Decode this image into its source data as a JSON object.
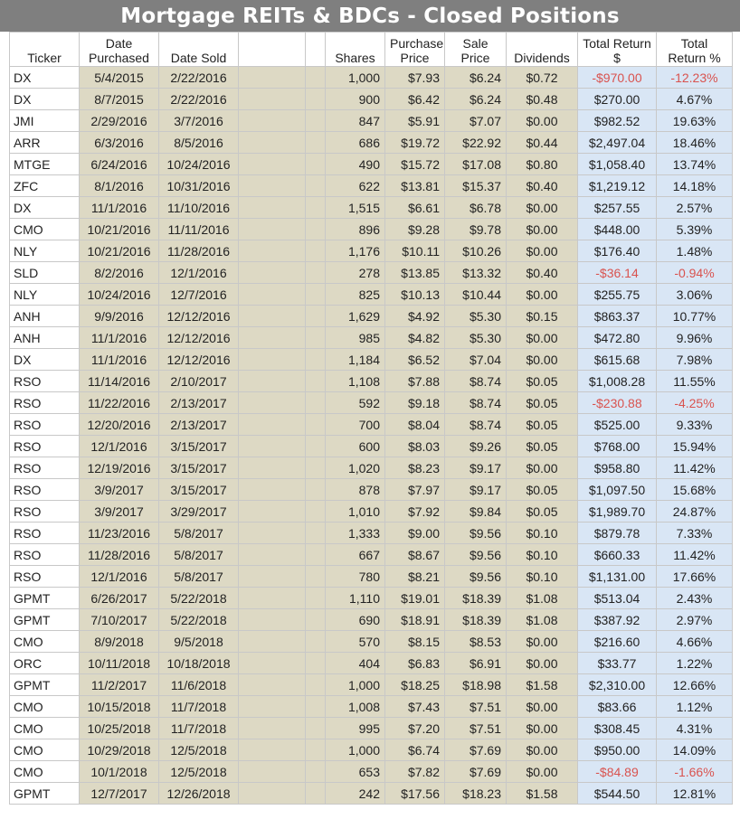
{
  "title": "Mortgage REITs & BDCs - Closed Positions",
  "headers": {
    "ticker": "Ticker",
    "date_purchased": [
      "Date",
      "Purchased"
    ],
    "date_sold": "Date Sold",
    "blank1": "",
    "blank2": "",
    "shares": "Shares",
    "purchase_price": [
      "Purchase",
      "Price"
    ],
    "sale_price": [
      "Sale",
      "Price"
    ],
    "dividends": "Dividends",
    "total_return_dollar": [
      "Total Return",
      "$"
    ],
    "total_return_pct": [
      "Total",
      "Return %"
    ]
  },
  "colors": {
    "title_bg": "#7f7f7f",
    "tan_cells": "#ddd9c4",
    "blue_cells": "#d9e6f5",
    "negative_text": "#d9534f"
  },
  "rows": [
    {
      "ticker": "DX",
      "purchased": "5/4/2015",
      "sold": "2/22/2016",
      "shares": "1,000",
      "purchase_price": "$7.93",
      "sale_price": "$6.24",
      "dividends": "$0.72",
      "total_return": "-$970.00",
      "return_pct": "-12.23%",
      "negative": true
    },
    {
      "ticker": "DX",
      "purchased": "8/7/2015",
      "sold": "2/22/2016",
      "shares": "900",
      "purchase_price": "$6.42",
      "sale_price": "$6.24",
      "dividends": "$0.48",
      "total_return": "$270.00",
      "return_pct": "4.67%",
      "negative": false
    },
    {
      "ticker": "JMI",
      "purchased": "2/29/2016",
      "sold": "3/7/2016",
      "shares": "847",
      "purchase_price": "$5.91",
      "sale_price": "$7.07",
      "dividends": "$0.00",
      "total_return": "$982.52",
      "return_pct": "19.63%",
      "negative": false
    },
    {
      "ticker": "ARR",
      "purchased": "6/3/2016",
      "sold": "8/5/2016",
      "shares": "686",
      "purchase_price": "$19.72",
      "sale_price": "$22.92",
      "dividends": "$0.44",
      "total_return": "$2,497.04",
      "return_pct": "18.46%",
      "negative": false
    },
    {
      "ticker": "MTGE",
      "purchased": "6/24/2016",
      "sold": "10/24/2016",
      "shares": "490",
      "purchase_price": "$15.72",
      "sale_price": "$17.08",
      "dividends": "$0.80",
      "total_return": "$1,058.40",
      "return_pct": "13.74%",
      "negative": false
    },
    {
      "ticker": "ZFC",
      "purchased": "8/1/2016",
      "sold": "10/31/2016",
      "shares": "622",
      "purchase_price": "$13.81",
      "sale_price": "$15.37",
      "dividends": "$0.40",
      "total_return": "$1,219.12",
      "return_pct": "14.18%",
      "negative": false
    },
    {
      "ticker": "DX",
      "purchased": "11/1/2016",
      "sold": "11/10/2016",
      "shares": "1,515",
      "purchase_price": "$6.61",
      "sale_price": "$6.78",
      "dividends": "$0.00",
      "total_return": "$257.55",
      "return_pct": "2.57%",
      "negative": false
    },
    {
      "ticker": "CMO",
      "purchased": "10/21/2016",
      "sold": "11/11/2016",
      "shares": "896",
      "purchase_price": "$9.28",
      "sale_price": "$9.78",
      "dividends": "$0.00",
      "total_return": "$448.00",
      "return_pct": "5.39%",
      "negative": false
    },
    {
      "ticker": "NLY",
      "purchased": "10/21/2016",
      "sold": "11/28/2016",
      "shares": "1,176",
      "purchase_price": "$10.11",
      "sale_price": "$10.26",
      "dividends": "$0.00",
      "total_return": "$176.40",
      "return_pct": "1.48%",
      "negative": false
    },
    {
      "ticker": "SLD",
      "purchased": "8/2/2016",
      "sold": "12/1/2016",
      "shares": "278",
      "purchase_price": "$13.85",
      "sale_price": "$13.32",
      "dividends": "$0.40",
      "total_return": "-$36.14",
      "return_pct": "-0.94%",
      "negative": true
    },
    {
      "ticker": "NLY",
      "purchased": "10/24/2016",
      "sold": "12/7/2016",
      "shares": "825",
      "purchase_price": "$10.13",
      "sale_price": "$10.44",
      "dividends": "$0.00",
      "total_return": "$255.75",
      "return_pct": "3.06%",
      "negative": false
    },
    {
      "ticker": "ANH",
      "purchased": "9/9/2016",
      "sold": "12/12/2016",
      "shares": "1,629",
      "purchase_price": "$4.92",
      "sale_price": "$5.30",
      "dividends": "$0.15",
      "total_return": "$863.37",
      "return_pct": "10.77%",
      "negative": false
    },
    {
      "ticker": "ANH",
      "purchased": "11/1/2016",
      "sold": "12/12/2016",
      "shares": "985",
      "purchase_price": "$4.82",
      "sale_price": "$5.30",
      "dividends": "$0.00",
      "total_return": "$472.80",
      "return_pct": "9.96%",
      "negative": false
    },
    {
      "ticker": "DX",
      "purchased": "11/1/2016",
      "sold": "12/12/2016",
      "shares": "1,184",
      "purchase_price": "$6.52",
      "sale_price": "$7.04",
      "dividends": "$0.00",
      "total_return": "$615.68",
      "return_pct": "7.98%",
      "negative": false
    },
    {
      "ticker": "RSO",
      "purchased": "11/14/2016",
      "sold": "2/10/2017",
      "shares": "1,108",
      "purchase_price": "$7.88",
      "sale_price": "$8.74",
      "dividends": "$0.05",
      "total_return": "$1,008.28",
      "return_pct": "11.55%",
      "negative": false
    },
    {
      "ticker": "RSO",
      "purchased": "11/22/2016",
      "sold": "2/13/2017",
      "shares": "592",
      "purchase_price": "$9.18",
      "sale_price": "$8.74",
      "dividends": "$0.05",
      "total_return": "-$230.88",
      "return_pct": "-4.25%",
      "negative": true
    },
    {
      "ticker": "RSO",
      "purchased": "12/20/2016",
      "sold": "2/13/2017",
      "shares": "700",
      "purchase_price": "$8.04",
      "sale_price": "$8.74",
      "dividends": "$0.05",
      "total_return": "$525.00",
      "return_pct": "9.33%",
      "negative": false
    },
    {
      "ticker": "RSO",
      "purchased": "12/1/2016",
      "sold": "3/15/2017",
      "shares": "600",
      "purchase_price": "$8.03",
      "sale_price": "$9.26",
      "dividends": "$0.05",
      "total_return": "$768.00",
      "return_pct": "15.94%",
      "negative": false
    },
    {
      "ticker": "RSO",
      "purchased": "12/19/2016",
      "sold": "3/15/2017",
      "shares": "1,020",
      "purchase_price": "$8.23",
      "sale_price": "$9.17",
      "dividends": "$0.00",
      "total_return": "$958.80",
      "return_pct": "11.42%",
      "negative": false
    },
    {
      "ticker": "RSO",
      "purchased": "3/9/2017",
      "sold": "3/15/2017",
      "shares": "878",
      "purchase_price": "$7.97",
      "sale_price": "$9.17",
      "dividends": "$0.05",
      "total_return": "$1,097.50",
      "return_pct": "15.68%",
      "negative": false
    },
    {
      "ticker": "RSO",
      "purchased": "3/9/2017",
      "sold": "3/29/2017",
      "shares": "1,010",
      "purchase_price": "$7.92",
      "sale_price": "$9.84",
      "dividends": "$0.05",
      "total_return": "$1,989.70",
      "return_pct": "24.87%",
      "negative": false
    },
    {
      "ticker": "RSO",
      "purchased": "11/23/2016",
      "sold": "5/8/2017",
      "shares": "1,333",
      "purchase_price": "$9.00",
      "sale_price": "$9.56",
      "dividends": "$0.10",
      "total_return": "$879.78",
      "return_pct": "7.33%",
      "negative": false
    },
    {
      "ticker": "RSO",
      "purchased": "11/28/2016",
      "sold": "5/8/2017",
      "shares": "667",
      "purchase_price": "$8.67",
      "sale_price": "$9.56",
      "dividends": "$0.10",
      "total_return": "$660.33",
      "return_pct": "11.42%",
      "negative": false
    },
    {
      "ticker": "RSO",
      "purchased": "12/1/2016",
      "sold": "5/8/2017",
      "shares": "780",
      "purchase_price": "$8.21",
      "sale_price": "$9.56",
      "dividends": "$0.10",
      "total_return": "$1,131.00",
      "return_pct": "17.66%",
      "negative": false
    },
    {
      "ticker": "GPMT",
      "purchased": "6/26/2017",
      "sold": "5/22/2018",
      "shares": "1,110",
      "purchase_price": "$19.01",
      "sale_price": "$18.39",
      "dividends": "$1.08",
      "total_return": "$513.04",
      "return_pct": "2.43%",
      "negative": false
    },
    {
      "ticker": "GPMT",
      "purchased": "7/10/2017",
      "sold": "5/22/2018",
      "shares": "690",
      "purchase_price": "$18.91",
      "sale_price": "$18.39",
      "dividends": "$1.08",
      "total_return": "$387.92",
      "return_pct": "2.97%",
      "negative": false
    },
    {
      "ticker": "CMO",
      "purchased": "8/9/2018",
      "sold": "9/5/2018",
      "shares": "570",
      "purchase_price": "$8.15",
      "sale_price": "$8.53",
      "dividends": "$0.00",
      "total_return": "$216.60",
      "return_pct": "4.66%",
      "negative": false
    },
    {
      "ticker": "ORC",
      "purchased": "10/11/2018",
      "sold": "10/18/2018",
      "shares": "404",
      "purchase_price": "$6.83",
      "sale_price": "$6.91",
      "dividends": "$0.00",
      "total_return": "$33.77",
      "return_pct": "1.22%",
      "negative": false
    },
    {
      "ticker": "GPMT",
      "purchased": "11/2/2017",
      "sold": "11/6/2018",
      "shares": "1,000",
      "purchase_price": "$18.25",
      "sale_price": "$18.98",
      "dividends": "$1.58",
      "total_return": "$2,310.00",
      "return_pct": "12.66%",
      "negative": false
    },
    {
      "ticker": "CMO",
      "purchased": "10/15/2018",
      "sold": "11/7/2018",
      "shares": "1,008",
      "purchase_price": "$7.43",
      "sale_price": "$7.51",
      "dividends": "$0.00",
      "total_return": "$83.66",
      "return_pct": "1.12%",
      "negative": false
    },
    {
      "ticker": "CMO",
      "purchased": "10/25/2018",
      "sold": "11/7/2018",
      "shares": "995",
      "purchase_price": "$7.20",
      "sale_price": "$7.51",
      "dividends": "$0.00",
      "total_return": "$308.45",
      "return_pct": "4.31%",
      "negative": false
    },
    {
      "ticker": "CMO",
      "purchased": "10/29/2018",
      "sold": "12/5/2018",
      "shares": "1,000",
      "purchase_price": "$6.74",
      "sale_price": "$7.69",
      "dividends": "$0.00",
      "total_return": "$950.00",
      "return_pct": "14.09%",
      "negative": false
    },
    {
      "ticker": "CMO",
      "purchased": "10/1/2018",
      "sold": "12/5/2018",
      "shares": "653",
      "purchase_price": "$7.82",
      "sale_price": "$7.69",
      "dividends": "$0.00",
      "total_return": "-$84.89",
      "return_pct": "-1.66%",
      "negative": true
    },
    {
      "ticker": "GPMT",
      "purchased": "12/7/2017",
      "sold": "12/26/2018",
      "shares": "242",
      "purchase_price": "$17.56",
      "sale_price": "$18.23",
      "dividends": "$1.58",
      "total_return": "$544.50",
      "return_pct": "12.81%",
      "negative": false
    }
  ]
}
